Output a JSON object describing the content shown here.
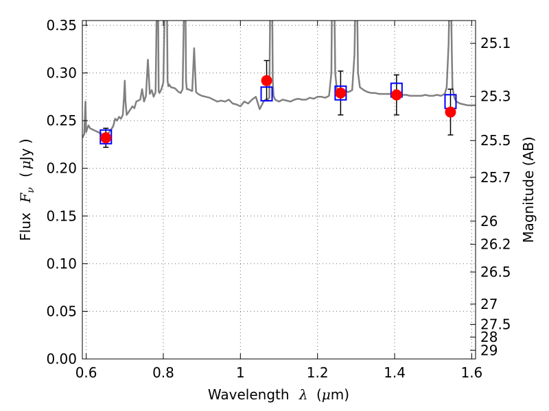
{
  "chart_data": {
    "type": "scatter",
    "xlabel_text": "Wavelength",
    "xlabel_symbol": "λ",
    "xlabel_unit_open": "(",
    "xlabel_unit_mu": "μ",
    "xlabel_unit_rest": "m)",
    "ylabel_text": "Flux",
    "ylabel_symbol": "F",
    "ylabel_symbol_sub": "ν",
    "ylabel_unit_open": "(",
    "ylabel_unit_mu": "μ",
    "ylabel_unit_rest": "Jy )",
    "y2label": "Magnitude (AB)",
    "xlim": [
      0.59,
      1.61
    ],
    "ylim": [
      0.0,
      0.355
    ],
    "grid": true,
    "x_ticks": [
      {
        "value": 0.6,
        "label": "0.6"
      },
      {
        "value": 0.8,
        "label": "0.8"
      },
      {
        "value": 1.0,
        "label": "1"
      },
      {
        "value": 1.2,
        "label": "1.2"
      },
      {
        "value": 1.4,
        "label": "1.4"
      },
      {
        "value": 1.6,
        "label": "1.6"
      }
    ],
    "y_ticks": [
      {
        "value": 0.0,
        "label": "0.00"
      },
      {
        "value": 0.05,
        "label": "0.05"
      },
      {
        "value": 0.1,
        "label": "0.10"
      },
      {
        "value": 0.15,
        "label": "0.15"
      },
      {
        "value": 0.2,
        "label": "0.20"
      },
      {
        "value": 0.25,
        "label": "0.25"
      },
      {
        "value": 0.3,
        "label": "0.30"
      },
      {
        "value": 0.35,
        "label": "0.35"
      }
    ],
    "y2_ticks": [
      {
        "mag": 25.1,
        "label": "25.1"
      },
      {
        "mag": 25.3,
        "label": "25.3"
      },
      {
        "mag": 25.5,
        "label": "25.5"
      },
      {
        "mag": 25.7,
        "label": "25.7"
      },
      {
        "mag": 26,
        "label": "26"
      },
      {
        "mag": 26.2,
        "label": "26.2"
      },
      {
        "mag": 26.5,
        "label": "26.5"
      },
      {
        "mag": 27,
        "label": "27"
      },
      {
        "mag": 27.5,
        "label": "27.5"
      },
      {
        "mag": 28,
        "label": "28"
      },
      {
        "mag": 29,
        "label": "29"
      }
    ],
    "model_color": "#808080",
    "observed_color": "#ff0000",
    "model_box_color": "#0000ff",
    "errorbar_color": "#000000",
    "model_spectrum": {
      "x": [
        0.59,
        0.595,
        0.598,
        0.6,
        0.603,
        0.606,
        0.61,
        0.615,
        0.62,
        0.63,
        0.64,
        0.65,
        0.66,
        0.67,
        0.675,
        0.68,
        0.685,
        0.69,
        0.695,
        0.698,
        0.7,
        0.702,
        0.705,
        0.71,
        0.715,
        0.72,
        0.725,
        0.73,
        0.74,
        0.745,
        0.75,
        0.755,
        0.76,
        0.765,
        0.77,
        0.775,
        0.78,
        0.784,
        0.786,
        0.788,
        0.79,
        0.795,
        0.8,
        0.805,
        0.807,
        0.809,
        0.811,
        0.813,
        0.815,
        0.82,
        0.83,
        0.84,
        0.845,
        0.85,
        0.855,
        0.857,
        0.859,
        0.861,
        0.865,
        0.87,
        0.875,
        0.88,
        0.885,
        0.89,
        0.9,
        0.91,
        0.92,
        0.93,
        0.94,
        0.95,
        0.96,
        0.97,
        0.98,
        0.99,
        1.0,
        1.01,
        1.02,
        1.03,
        1.04,
        1.05,
        1.06,
        1.065,
        1.07,
        1.075,
        1.078,
        1.08,
        1.082,
        1.084,
        1.086,
        1.09,
        1.1,
        1.11,
        1.12,
        1.13,
        1.14,
        1.15,
        1.16,
        1.17,
        1.18,
        1.19,
        1.2,
        1.21,
        1.22,
        1.23,
        1.236,
        1.238,
        1.24,
        1.243,
        1.246,
        1.25,
        1.26,
        1.27,
        1.28,
        1.29,
        1.296,
        1.299,
        1.302,
        1.305,
        1.31,
        1.32,
        1.33,
        1.34,
        1.35,
        1.36,
        1.37,
        1.38,
        1.39,
        1.4,
        1.41,
        1.42,
        1.43,
        1.44,
        1.45,
        1.46,
        1.47,
        1.48,
        1.49,
        1.5,
        1.51,
        1.52,
        1.53,
        1.535,
        1.54,
        1.543,
        1.546,
        1.548,
        1.55,
        1.555,
        1.56,
        1.57,
        1.58,
        1.59,
        1.6,
        1.61
      ],
      "y": [
        0.232,
        0.236,
        0.27,
        0.238,
        0.242,
        0.245,
        0.242,
        0.241,
        0.24,
        0.238,
        0.236,
        0.234,
        0.238,
        0.244,
        0.252,
        0.25,
        0.254,
        0.252,
        0.256,
        0.275,
        0.292,
        0.27,
        0.256,
        0.259,
        0.262,
        0.265,
        0.263,
        0.27,
        0.272,
        0.283,
        0.27,
        0.276,
        0.314,
        0.278,
        0.282,
        0.275,
        0.28,
        0.4,
        0.4,
        0.281,
        0.279,
        0.283,
        0.29,
        0.4,
        0.4,
        0.4,
        0.292,
        0.286,
        0.288,
        0.285,
        0.284,
        0.28,
        0.279,
        0.283,
        0.4,
        0.4,
        0.292,
        0.283,
        0.283,
        0.282,
        0.281,
        0.326,
        0.28,
        0.278,
        0.276,
        0.275,
        0.274,
        0.272,
        0.27,
        0.271,
        0.27,
        0.272,
        0.268,
        0.267,
        0.265,
        0.27,
        0.268,
        0.272,
        0.275,
        0.262,
        0.27,
        0.272,
        0.272,
        0.274,
        0.4,
        0.4,
        0.4,
        0.29,
        0.276,
        0.272,
        0.27,
        0.272,
        0.271,
        0.27,
        0.272,
        0.273,
        0.272,
        0.272,
        0.274,
        0.273,
        0.275,
        0.275,
        0.274,
        0.276,
        0.3,
        0.4,
        0.4,
        0.4,
        0.3,
        0.283,
        0.279,
        0.281,
        0.28,
        0.282,
        0.32,
        0.4,
        0.4,
        0.3,
        0.285,
        0.282,
        0.28,
        0.279,
        0.279,
        0.278,
        0.278,
        0.278,
        0.278,
        0.277,
        0.277,
        0.277,
        0.277,
        0.276,
        0.276,
        0.276,
        0.276,
        0.277,
        0.276,
        0.276,
        0.277,
        0.276,
        0.278,
        0.285,
        0.33,
        0.4,
        0.4,
        0.33,
        0.285,
        0.274,
        0.27,
        0.268,
        0.267,
        0.266,
        0.266,
        0.266
      ]
    },
    "observed_points": [
      {
        "x": 0.651,
        "y": 0.232,
        "err": 0.01,
        "model_box": 0.233
      },
      {
        "x": 1.068,
        "y": 0.292,
        "err": 0.021,
        "model_box": 0.278
      },
      {
        "x": 1.26,
        "y": 0.279,
        "err": 0.023,
        "model_box": 0.279
      },
      {
        "x": 1.405,
        "y": 0.277,
        "err": 0.021,
        "model_box": 0.282
      },
      {
        "x": 1.545,
        "y": 0.259,
        "err": 0.024,
        "model_box": 0.27
      }
    ]
  }
}
